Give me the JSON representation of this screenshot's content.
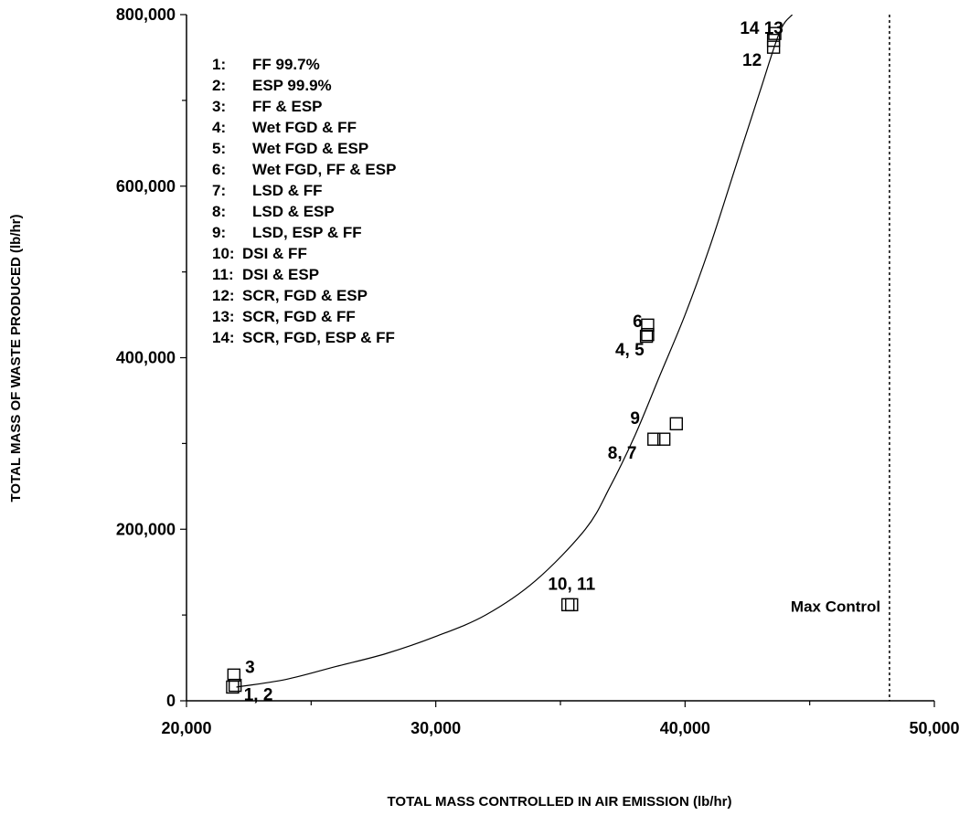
{
  "chart_data": {
    "type": "scatter",
    "xlabel": "TOTAL MASS CONTROLLED IN AIR EMISSION (lb/hr)",
    "ylabel": "TOTAL MASS OF WASTE PRODUCED (lb/hr)",
    "xlim": [
      20000,
      50000
    ],
    "ylim": [
      0,
      800000
    ],
    "x_ticks": [
      "20,000",
      "30,000",
      "40,000",
      "50,000"
    ],
    "y_ticks": [
      "0",
      "200,000",
      "400,000",
      "600,000",
      "800,000"
    ],
    "grid": false,
    "legend_position": "top-left",
    "legend_items": [
      {
        "num": "1:",
        "label": "FF 99.7%"
      },
      {
        "num": "2:",
        "label": "ESP 99.9%"
      },
      {
        "num": "3:",
        "label": "FF & ESP"
      },
      {
        "num": "4:",
        "label": "Wet FGD & FF"
      },
      {
        "num": "5:",
        "label": "Wet FGD & ESP"
      },
      {
        "num": "6:",
        "label": "Wet FGD, FF & ESP"
      },
      {
        "num": "7:",
        "label": "LSD & FF"
      },
      {
        "num": "8:",
        "label": "LSD & ESP"
      },
      {
        "num": "9:",
        "label": "LSD, ESP & FF"
      },
      {
        "num": "10:",
        "label": "DSI & FF"
      },
      {
        "num": "11:",
        "label": "DSI & ESP"
      },
      {
        "num": "12:",
        "label": "SCR, FGD & ESP"
      },
      {
        "num": "13:",
        "label": "SCR, FGD & FF"
      },
      {
        "num": "14:",
        "label": "SCR, FGD, ESP & FF"
      }
    ],
    "points": [
      {
        "x": 21850,
        "y": 16000
      },
      {
        "x": 21950,
        "y": 18000
      },
      {
        "x": 21900,
        "y": 30000
      },
      {
        "x": 38450,
        "y": 425000
      },
      {
        "x": 38500,
        "y": 427000
      },
      {
        "x": 38500,
        "y": 438000
      },
      {
        "x": 39150,
        "y": 305000
      },
      {
        "x": 38750,
        "y": 305000
      },
      {
        "x": 39650,
        "y": 323000
      },
      {
        "x": 35300,
        "y": 112000
      },
      {
        "x": 35450,
        "y": 112000
      },
      {
        "x": 43550,
        "y": 762000
      },
      {
        "x": 43550,
        "y": 770000
      },
      {
        "x": 43600,
        "y": 778000
      }
    ],
    "point_labels": [
      {
        "text": "1, 2",
        "x": 22300,
        "y": 8000
      },
      {
        "text": "3",
        "x": 22350,
        "y": 40000
      },
      {
        "text": "6",
        "x": 37900,
        "y": 443000
      },
      {
        "text": "4, 5",
        "x": 37200,
        "y": 410000
      },
      {
        "text": "9",
        "x": 37800,
        "y": 330000
      },
      {
        "text": "8, 7",
        "x": 36900,
        "y": 290000
      },
      {
        "text": "10, 11",
        "x": 34500,
        "y": 137000
      },
      {
        "text": "14 13",
        "x": 42200,
        "y": 785000
      },
      {
        "text": "12",
        "x": 42300,
        "y": 748000
      }
    ],
    "fit_curve": {
      "label": "",
      "x": [
        22000,
        24000,
        26000,
        28000,
        30000,
        32000,
        34000,
        36000,
        37000,
        38000,
        39000,
        40000,
        41000,
        42000,
        43000,
        43800,
        44300
      ],
      "y": [
        16000,
        25000,
        40000,
        55000,
        75000,
        100000,
        140000,
        200000,
        250000,
        310000,
        380000,
        450000,
        530000,
        620000,
        710000,
        780000,
        800000
      ]
    },
    "max_control": {
      "x": 48200,
      "label": "Max Control"
    }
  }
}
